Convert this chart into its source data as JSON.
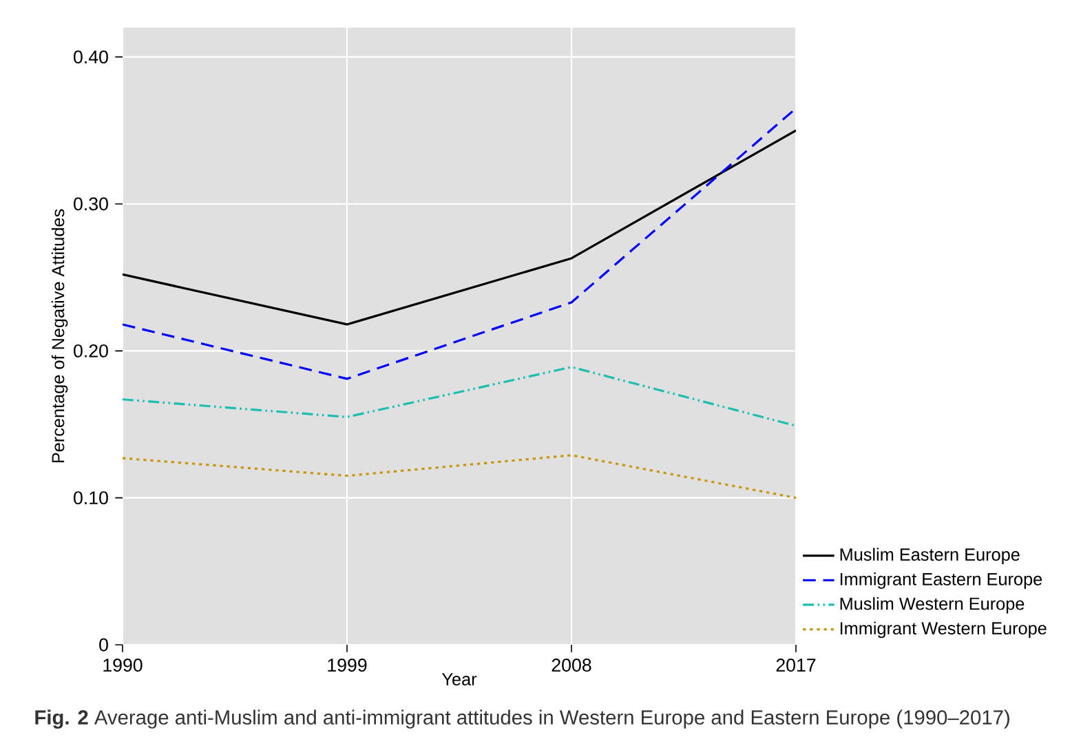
{
  "chart_data": {
    "type": "line",
    "xlabel": "Year",
    "ylabel": "Percentage of Negative Attitudes",
    "x": [
      1990,
      1999,
      2008,
      2017
    ],
    "xlim": [
      1990,
      2017
    ],
    "xticks": [
      1990,
      1999,
      2008,
      2017
    ],
    "ylim": [
      0,
      0.42
    ],
    "yticks": [
      0,
      {
        "value": 0.1,
        "label": "0.10"
      },
      {
        "value": 0.2,
        "label": "0.20"
      },
      {
        "value": 0.3,
        "label": "0.30"
      },
      {
        "value": 0.4,
        "label": "0.40"
      }
    ],
    "grid": true,
    "legend": "bottom right",
    "marker": "none",
    "series": [
      {
        "name": "Muslim Eastern Europe",
        "color": "#000000",
        "line_style": "solid",
        "values": [
          0.252,
          0.218,
          0.263,
          0.35
        ]
      },
      {
        "name": "Immigrant Eastern Europe",
        "color": "#0000ff",
        "line_style": "dashed",
        "values": [
          0.218,
          0.181,
          0.233,
          0.365
        ]
      },
      {
        "name": "Muslim Western Europe",
        "color": "#1abfb0",
        "line_style": "dashdotdot",
        "values": [
          0.167,
          0.155,
          0.189,
          0.149
        ]
      },
      {
        "name": "Immigrant Western Europe",
        "color": "#c8960a",
        "line_style": "dotted",
        "values": [
          0.127,
          0.115,
          0.129,
          0.1
        ]
      }
    ],
    "annotations": [
      "**Fig. 2** Average anti-Muslim and anti-immigrant attitudes in Western Europe and Eastern Europe (1990–2017)"
    ]
  }
}
